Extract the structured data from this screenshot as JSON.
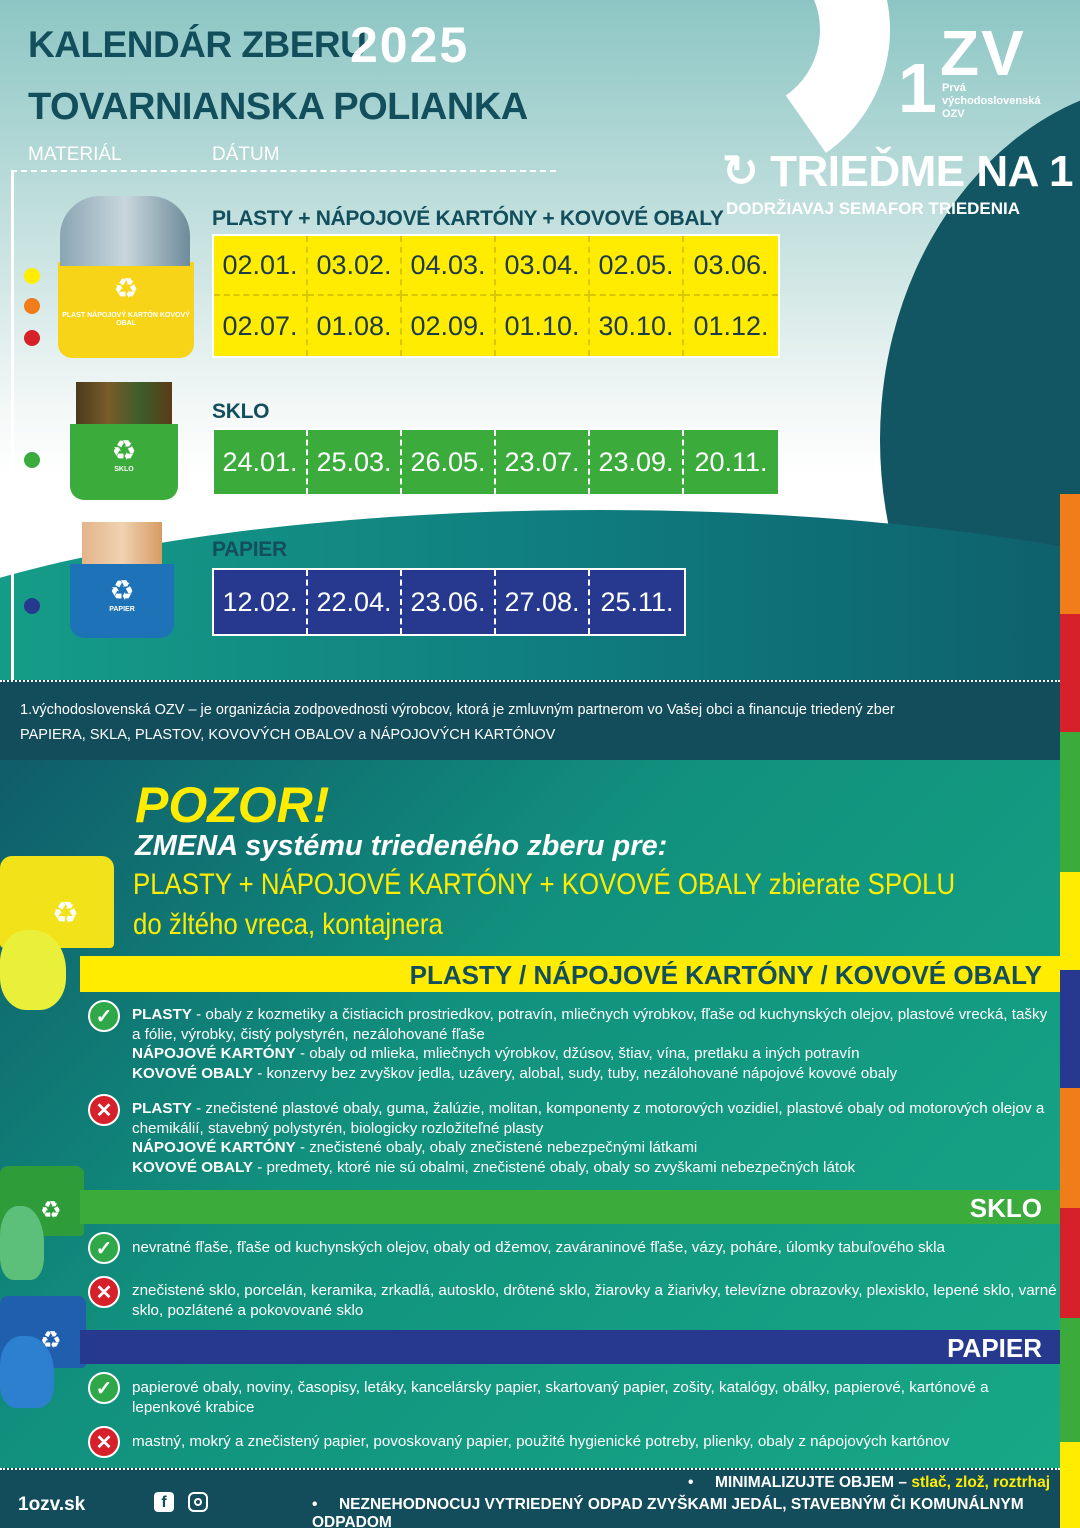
{
  "header": {
    "title_line1": "KALENDÁR ZBERU",
    "year": "2025",
    "title_line2": "TOVARNIANSKA POLIANKA",
    "col_material": "MATERIÁL",
    "col_date": "DÁTUM"
  },
  "logo": {
    "mark": "ZV",
    "one": "1",
    "subtitle": "Prvá východoslovenská OZV",
    "slogan": "TRIEĎME NA 1",
    "slogan_sub": "DODRŽIAVAJ SEMAFOR TRIEDENIA"
  },
  "sections": {
    "plasty": {
      "label": "PLASTY + NÁPOJOVÉ KARTÓNY + KOVOVÉ OBALY",
      "bin_label": "PLAST NÁPOJOVÝ KARTÓN KOVOVÝ OBAL",
      "dates_row1": [
        "02.01.",
        "03.02.",
        "04.03.",
        "03.04.",
        "02.05.",
        "03.06."
      ],
      "dates_row2": [
        "02.07.",
        "01.08.",
        "02.09.",
        "01.10.",
        "30.10.",
        "01.12."
      ]
    },
    "sklo": {
      "label": "SKLO",
      "bin_label": "SKLO",
      "dates": [
        "24.01.",
        "25.03.",
        "26.05.",
        "23.07.",
        "23.09.",
        "20.11."
      ]
    },
    "papier": {
      "label": "PAPIER",
      "bin_label": "PAPIER",
      "dates": [
        "12.02.",
        "22.04.",
        "23.06.",
        "27.08.",
        "25.11."
      ]
    }
  },
  "info": {
    "text_line1": "1.východoslovenská OZV – je organizácia zodpovednosti výrobcov, ktorá je zmluvným partnerom vo Vašej obci a financuje triedený zber",
    "text_line2": "PAPIERA, SKLA, PLASTOV, KOVOVÝCH OBALOV a NÁPOJOVÝCH KARTÓNOV"
  },
  "notice": {
    "pozor": "POZOR!",
    "zmena": "ZMENA systému triedeného zberu pre:",
    "line1": "PLASTY + NÁPOJOVÉ KARTÓNY + KOVOVÉ  OBALY zbierate SPOLU",
    "line2": "do žltého vreca, kontajnera"
  },
  "rules": {
    "plasty_heading": "PLASTY / NÁPOJOVÉ KARTÓNY / KOVOVÉ OBALY",
    "plasty_yes": [
      {
        "b": "PLASTY",
        "t": " - obaly z kozmetiky a čistiacich prostriedkov, potravín, mliečnych výrobkov, fľaše od kuchynských olejov, plastové vrecká, tašky a fólie, výrobky, čistý polystyrén, nezálohované fľaše"
      },
      {
        "b": "NÁPOJOVÉ KARTÓNY",
        "t": " - obaly od mlieka, mliečnych výrobkov, džúsov, štiav, vína, pretlaku a iných potravín"
      },
      {
        "b": "KOVOVÉ OBALY",
        "t": " - konzervy bez zvyškov jedla, uzávery, alobal, sudy, tuby, nezálohované nápojové kovové obaly"
      }
    ],
    "plasty_no": [
      {
        "b": "PLASTY",
        "t": " - znečistené plastové obaly, guma, žalúzie, molitan, komponenty z motorových vozidiel, plastové obaly od motorových olejov a chemikálií, stavebný polystyrén, biologicky rozložiteľné plasty"
      },
      {
        "b": "NÁPOJOVÉ KARTÓNY",
        "t": " - znečistené obaly, obaly znečistené nebezpečnými látkami"
      },
      {
        "b": "KOVOVÉ OBALY",
        "t": " - predmety, ktoré nie sú obalmi, znečistené obaly, obaly so zvyškami nebezpečných látok"
      }
    ],
    "sklo_heading": "SKLO",
    "sklo_yes": "nevratné fľaše, fľaše od kuchynských olejov, obaly od džemov, zaváraninové fľaše, vázy, poháre, úlomky tabuľového skla",
    "sklo_no": "znečistené sklo, porcelán, keramika, zrkadlá, autosklo, drôtené sklo, žiarovky a žiarivky, televízne obrazovky, plexisklo, lepené sklo, varné sklo, pozlátené a pokovované sklo",
    "papier_heading": "PAPIER",
    "papier_yes": "papierové obaly, noviny, časopisy, letáky, kancelársky papier, skartovaný papier, zošity, katalógy, obálky, papierové, kartónové a lepenkové krabice",
    "papier_no": "mastný, mokrý a znečistený papier, povoskovaný papier, použité hygienické potreby, plienky, obaly z nápojových kartónov"
  },
  "footer": {
    "web": "1ozv.sk",
    "tip1_bullet": "•",
    "tip1": "MINIMALIZUJTE OBJEM –",
    "tip1_highlight": "stlač, zlož, roztrhaj",
    "tip2_bullet": "•",
    "tip2": "NEZNEHODNOCUJ VYTRIEDENÝ ODPAD ZVYŠKAMI JEDÁL, STAVEBNÝM ČI KOMUNÁLNYM ODPADOM"
  },
  "colors": {
    "dark_teal": "#124e5c",
    "yellow": "#ffec00",
    "green": "#3bab3c",
    "blue": "#26398e",
    "red": "#d6202a",
    "orange": "#f07d1a"
  }
}
